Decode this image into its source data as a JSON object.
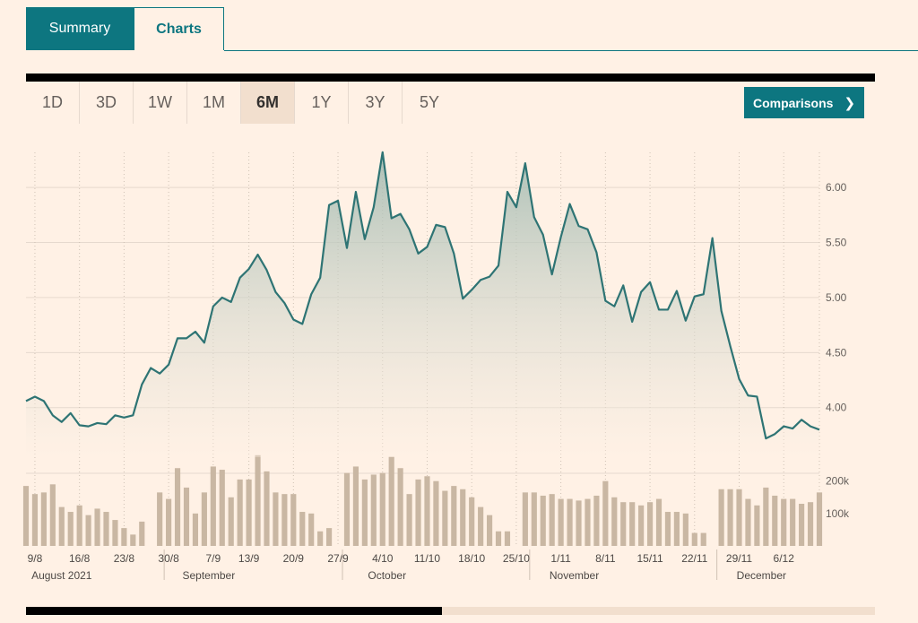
{
  "tabs": [
    {
      "label": "Summary",
      "active": true
    },
    {
      "label": "Charts",
      "active": false
    }
  ],
  "ranges": [
    "1D",
    "3D",
    "1W",
    "1M",
    "6M",
    "1Y",
    "3Y",
    "5Y"
  ],
  "active_range": "6M",
  "comparisons": {
    "label": "Comparisons",
    "icon": "chevron-right-icon"
  },
  "scroll": {
    "thumb_fraction": 0.49
  },
  "colors": {
    "accent": "#0d7680",
    "line": "#2e7474",
    "volume": "#c9b7a3",
    "background": "#fff1e5"
  },
  "chart_data": {
    "type": "line",
    "price": {
      "y_ticks": [
        "6.00",
        "5.50",
        "5.00",
        "4.50",
        "4.00"
      ],
      "y_tick_values": [
        6.0,
        5.5,
        5.0,
        4.5,
        4.0
      ],
      "ylim": [
        3.55,
        6.4
      ],
      "values": [
        4.06,
        4.1,
        4.06,
        3.93,
        3.87,
        3.95,
        3.84,
        3.83,
        3.86,
        3.85,
        3.93,
        3.91,
        3.93,
        4.21,
        4.36,
        4.31,
        4.39,
        4.63,
        4.63,
        4.69,
        4.59,
        4.92,
        5.0,
        4.96,
        5.18,
        5.26,
        5.39,
        5.25,
        5.05,
        4.95,
        4.8,
        4.76,
        5.03,
        5.18,
        5.84,
        5.88,
        5.45,
        5.96,
        5.53,
        5.82,
        6.32,
        5.72,
        5.76,
        5.62,
        5.4,
        5.46,
        5.66,
        5.64,
        5.4,
        4.99,
        5.07,
        5.16,
        5.19,
        5.29,
        5.96,
        5.82,
        6.22,
        5.73,
        5.57,
        5.21,
        5.55,
        5.85,
        5.65,
        5.62,
        5.41,
        4.97,
        4.92,
        5.11,
        4.78,
        5.05,
        5.14,
        4.89,
        4.89,
        5.06,
        4.79,
        5.01,
        5.03,
        5.54,
        4.88,
        4.56,
        4.26,
        4.11,
        4.1,
        3.72,
        3.76,
        3.83,
        3.81,
        3.89,
        3.83,
        3.8
      ],
      "grid": true
    },
    "volume": {
      "y_ticks": [
        "200k",
        "100k"
      ],
      "y_tick_values": [
        200000,
        100000
      ],
      "ylim": [
        0,
        260000
      ],
      "values": [
        185000,
        160000,
        165000,
        190000,
        120000,
        105000,
        125000,
        95000,
        115000,
        105000,
        80000,
        55000,
        35000,
        75000,
        null,
        165000,
        145000,
        240000,
        180000,
        100000,
        165000,
        245000,
        235000,
        150000,
        205000,
        205000,
        280000,
        230000,
        165000,
        160000,
        160000,
        105000,
        100000,
        45000,
        55000,
        null,
        225000,
        245000,
        205000,
        220000,
        225000,
        275000,
        240000,
        160000,
        205000,
        215000,
        200000,
        170000,
        185000,
        175000,
        150000,
        120000,
        95000,
        45000,
        45000,
        null,
        165000,
        165000,
        155000,
        160000,
        145000,
        145000,
        140000,
        145000,
        155000,
        200000,
        150000,
        135000,
        135000,
        125000,
        135000,
        145000,
        105000,
        105000,
        100000,
        40000,
        40000,
        null,
        175000,
        175000,
        175000,
        145000,
        125000,
        180000,
        155000,
        145000,
        145000,
        130000,
        135000,
        165000
      ]
    },
    "x_ticks": [
      "9/8",
      "16/8",
      "23/8",
      "30/8",
      "7/9",
      "13/9",
      "20/9",
      "27/9",
      "4/10",
      "11/10",
      "18/10",
      "25/10",
      "1/11",
      "8/11",
      "15/11",
      "22/11",
      "29/11",
      "6/12"
    ],
    "x_tick_index": [
      1,
      6,
      11,
      16,
      21,
      25,
      30,
      35,
      40,
      45,
      50,
      55,
      60,
      65,
      70,
      75,
      80,
      85
    ],
    "month_labels": [
      "August 2021",
      "September",
      "October",
      "November",
      "December"
    ],
    "month_label_index": [
      4,
      20.5,
      40.5,
      61.5,
      82.5
    ],
    "month_boundary_index": [
      15.5,
      35.5,
      56.5,
      77.5
    ]
  }
}
